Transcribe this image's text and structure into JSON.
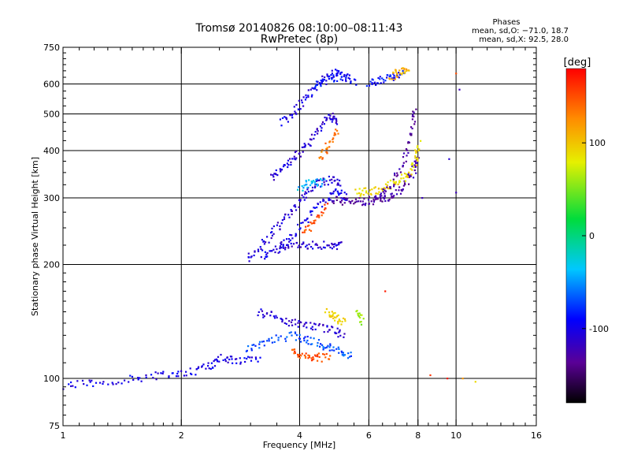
{
  "chart_data": {
    "type": "scatter",
    "title": "Tromsø 20140826 08:10:00–08:11:43",
    "subtitle": "RwPretec (8p)",
    "xlabel": "Frequency [MHz]",
    "ylabel": "Stationary phase Virtual Height [km]",
    "x_scale": "log",
    "y_scale": "log",
    "xlim": [
      1,
      16
    ],
    "ylim": [
      75,
      750
    ],
    "x_ticks": [
      1,
      2,
      4,
      6,
      8,
      10,
      16
    ],
    "y_ticks": [
      75,
      100,
      200,
      300,
      400,
      500,
      600,
      750
    ],
    "x_grid": [
      2,
      4,
      6,
      8,
      10
    ],
    "y_grid": [
      100,
      200,
      300,
      400,
      500,
      600
    ],
    "grid": true,
    "legend": {
      "title": "Phases",
      "lines": [
        "mean, sd,O: −71.0, 18.7",
        "mean, sd,X:  92.5, 28.0"
      ]
    },
    "colorbar": {
      "label": "[deg]",
      "ticks": [
        100,
        0,
        -100
      ],
      "range": [
        -180,
        180
      ],
      "colormap": "rainbow"
    },
    "trace_segments": [
      {
        "phase": -100,
        "points": [
          [
            1.0,
            96
          ],
          [
            1.2,
            97
          ],
          [
            1.5,
            100
          ],
          [
            1.8,
            102
          ],
          [
            2.1,
            104
          ],
          [
            2.35,
            108
          ],
          [
            2.55,
            113
          ],
          [
            2.8,
            112
          ],
          [
            3.2,
            111
          ]
        ]
      },
      {
        "phase": -70,
        "points": [
          [
            2.9,
            120
          ],
          [
            3.3,
            125
          ],
          [
            3.8,
            130
          ],
          [
            4.2,
            127
          ],
          [
            4.6,
            122
          ],
          [
            5.0,
            118
          ],
          [
            5.4,
            115
          ]
        ]
      },
      {
        "phase": -110,
        "points": [
          [
            3.1,
            150
          ],
          [
            3.5,
            145
          ],
          [
            3.9,
            140
          ],
          [
            4.3,
            138
          ],
          [
            4.8,
            135
          ],
          [
            5.2,
            130
          ]
        ]
      },
      {
        "phase": 150,
        "points": [
          [
            3.8,
            118
          ],
          [
            4.1,
            115
          ],
          [
            4.4,
            114
          ],
          [
            4.8,
            113
          ]
        ]
      },
      {
        "phase": 95,
        "points": [
          [
            4.7,
            150
          ],
          [
            4.95,
            145
          ],
          [
            5.2,
            140
          ]
        ]
      },
      {
        "phase": -110,
        "points": [
          [
            2.95,
            205
          ],
          [
            3.2,
            225
          ],
          [
            3.5,
            250
          ],
          [
            3.8,
            275
          ],
          [
            4.1,
            300
          ],
          [
            4.4,
            325
          ],
          [
            4.8,
            335
          ],
          [
            5.1,
            330
          ]
        ]
      },
      {
        "phase": -100,
        "points": [
          [
            3.2,
            210
          ],
          [
            3.5,
            220
          ],
          [
            3.8,
            235
          ],
          [
            4.2,
            265
          ],
          [
            4.6,
            295
          ],
          [
            5.0,
            310
          ],
          [
            5.3,
            300
          ]
        ]
      },
      {
        "phase": -110,
        "points": [
          [
            3.5,
            225
          ],
          [
            3.9,
            225
          ],
          [
            4.3,
            225
          ],
          [
            4.8,
            225
          ],
          [
            5.1,
            225
          ]
        ]
      },
      {
        "phase": 150,
        "points": [
          [
            4.1,
            240
          ],
          [
            4.4,
            260
          ],
          [
            4.7,
            285
          ]
        ]
      },
      {
        "phase": -130,
        "points": [
          [
            4.8,
            295
          ],
          [
            5.3,
            295
          ],
          [
            5.8,
            294
          ],
          [
            6.3,
            296
          ],
          [
            6.8,
            302
          ],
          [
            7.3,
            318
          ],
          [
            7.8,
            355
          ],
          [
            8.0,
            390
          ]
        ]
      },
      {
        "phase": 90,
        "points": [
          [
            5.6,
            310
          ],
          [
            6.0,
            312
          ],
          [
            6.5,
            316
          ],
          [
            7.0,
            330
          ],
          [
            7.5,
            345
          ],
          [
            7.9,
            375
          ],
          [
            8.05,
            420
          ]
        ]
      },
      {
        "phase": -130,
        "points": [
          [
            6.2,
            300
          ],
          [
            6.8,
            320
          ],
          [
            7.3,
            370
          ],
          [
            7.7,
            440
          ],
          [
            7.85,
            520
          ]
        ]
      },
      {
        "phase": -110,
        "points": [
          [
            3.4,
            340
          ],
          [
            3.6,
            360
          ],
          [
            3.9,
            385
          ],
          [
            4.2,
            415
          ],
          [
            4.5,
            460
          ],
          [
            4.8,
            495
          ],
          [
            5.0,
            470
          ]
        ]
      },
      {
        "phase": 130,
        "points": [
          [
            4.5,
            380
          ],
          [
            4.75,
            415
          ],
          [
            5.0,
            455
          ]
        ]
      },
      {
        "phase": -100,
        "points": [
          [
            3.6,
            475
          ],
          [
            3.9,
            510
          ],
          [
            4.2,
            560
          ],
          [
            4.5,
            610
          ],
          [
            4.9,
            640
          ],
          [
            5.4,
            625
          ]
        ]
      },
      {
        "phase": -90,
        "points": [
          [
            4.3,
            590
          ],
          [
            4.7,
            615
          ],
          [
            5.1,
            630
          ],
          [
            5.6,
            605
          ]
        ]
      },
      {
        "phase": -90,
        "points": [
          [
            6.0,
            600
          ],
          [
            6.4,
            615
          ],
          [
            6.9,
            630
          ],
          [
            7.4,
            640
          ]
        ]
      },
      {
        "phase": 110,
        "points": [
          [
            6.8,
            625
          ],
          [
            7.2,
            645
          ],
          [
            7.55,
            655
          ]
        ]
      },
      {
        "phase": -40,
        "points": [
          [
            4.0,
            320
          ],
          [
            4.3,
            330
          ],
          [
            4.6,
            330
          ]
        ]
      },
      {
        "phase": 60,
        "points": [
          [
            5.6,
            150
          ],
          [
            5.8,
            140
          ]
        ]
      }
    ],
    "isolated_points": [
      {
        "x": 9.5,
        "y": 100,
        "phase": 170
      },
      {
        "x": 10.4,
        "y": 100,
        "phase": 120
      },
      {
        "x": 10.0,
        "y": 310,
        "phase": -120
      },
      {
        "x": 8.2,
        "y": 300,
        "phase": -120
      },
      {
        "x": 9.6,
        "y": 380,
        "phase": -110
      },
      {
        "x": 10.2,
        "y": 580,
        "phase": -120
      },
      {
        "x": 11.2,
        "y": 98,
        "phase": 90
      },
      {
        "x": 10.0,
        "y": 640,
        "phase": 150
      },
      {
        "x": 6.6,
        "y": 170,
        "phase": 170
      },
      {
        "x": 8.6,
        "y": 102,
        "phase": 160
      }
    ]
  }
}
